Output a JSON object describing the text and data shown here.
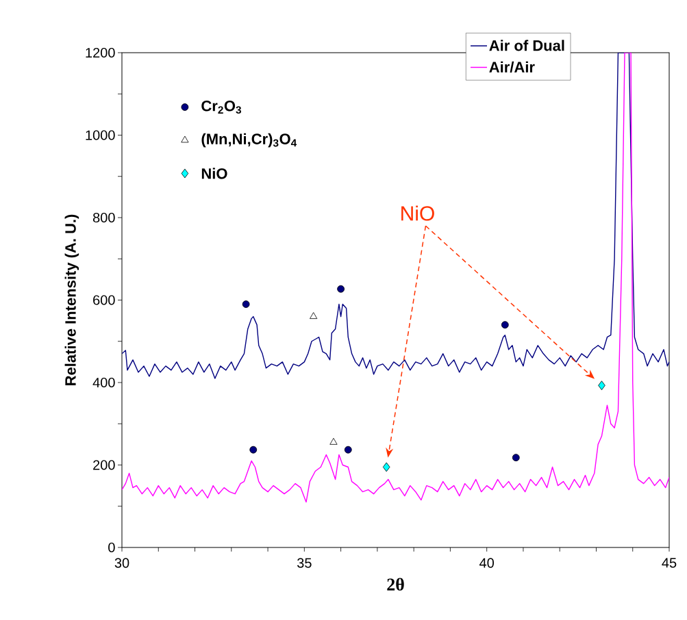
{
  "chart_data": {
    "type": "line",
    "xlabel": "2θ",
    "ylabel": "Relative Intensity (A. U.)",
    "xlim": [
      30,
      45
    ],
    "ylim": [
      0,
      1200
    ],
    "xticks": [
      30,
      {
        "value": 31,
        "label": null
      },
      {
        "value": 32,
        "label": null
      },
      {
        "value": 33,
        "label": null
      },
      {
        "value": 34,
        "label": null
      },
      35,
      {
        "value": 36,
        "label": null
      },
      {
        "value": 37,
        "label": null
      },
      {
        "value": 38,
        "label": null
      },
      {
        "value": 39,
        "label": null
      },
      40,
      {
        "value": 41,
        "label": null
      },
      {
        "value": 42,
        "label": null
      },
      {
        "value": 43,
        "label": null
      },
      {
        "value": 44,
        "label": null
      },
      45
    ],
    "yticks": [
      0,
      {
        "value": 100,
        "label": null
      },
      200,
      {
        "value": 300,
        "label": null
      },
      400,
      {
        "value": 500,
        "label": null
      },
      600,
      {
        "value": 700,
        "label": null
      },
      800,
      {
        "value": 900,
        "label": null
      },
      1000,
      {
        "value": 1100,
        "label": null
      },
      1200
    ],
    "grid": false,
    "legend": "top right",
    "annotations": [
      "NiO"
    ],
    "series": [
      {
        "name": "Air of Dual",
        "color": "#000080",
        "marker": "none",
        "line_style": "solid",
        "x": [
          30.0,
          30.1,
          30.15,
          30.3,
          30.45,
          30.6,
          30.75,
          30.9,
          31.05,
          31.2,
          31.35,
          31.5,
          31.65,
          31.8,
          31.95,
          32.1,
          32.25,
          32.4,
          32.55,
          32.7,
          32.85,
          33.0,
          33.1,
          33.25,
          33.35,
          33.45,
          33.55,
          33.6,
          33.7,
          33.75,
          33.85,
          33.95,
          34.1,
          34.25,
          34.4,
          34.55,
          34.7,
          34.85,
          35.0,
          35.1,
          35.2,
          35.3,
          35.4,
          35.5,
          35.6,
          35.7,
          35.75,
          35.85,
          35.95,
          36.0,
          36.05,
          36.15,
          36.2,
          36.3,
          36.4,
          36.5,
          36.6,
          36.7,
          36.8,
          36.9,
          37.0,
          37.15,
          37.3,
          37.45,
          37.6,
          37.75,
          37.9,
          38.05,
          38.2,
          38.35,
          38.5,
          38.65,
          38.8,
          38.95,
          39.1,
          39.25,
          39.4,
          39.55,
          39.7,
          39.85,
          40.0,
          40.15,
          40.3,
          40.45,
          40.5,
          40.6,
          40.7,
          40.8,
          40.9,
          41.0,
          41.1,
          41.25,
          41.4,
          41.55,
          41.7,
          41.85,
          42.0,
          42.15,
          42.3,
          42.45,
          42.6,
          42.75,
          42.9,
          43.05,
          43.2,
          43.3,
          43.4,
          43.5,
          43.6,
          43.9,
          44.0,
          44.05,
          44.15,
          44.3,
          44.4,
          44.55,
          44.7,
          44.85,
          44.95,
          45.0
        ],
        "values": [
          470,
          478,
          430,
          455,
          425,
          440,
          415,
          445,
          425,
          440,
          430,
          450,
          425,
          435,
          420,
          450,
          425,
          445,
          410,
          440,
          430,
          450,
          430,
          455,
          470,
          530,
          555,
          560,
          540,
          490,
          470,
          435,
          445,
          440,
          450,
          420,
          445,
          440,
          450,
          470,
          500,
          505,
          510,
          475,
          470,
          455,
          520,
          530,
          590,
          560,
          590,
          580,
          510,
          470,
          450,
          440,
          460,
          435,
          455,
          420,
          440,
          445,
          430,
          450,
          440,
          455,
          430,
          450,
          445,
          460,
          440,
          445,
          470,
          440,
          455,
          425,
          450,
          445,
          460,
          430,
          450,
          440,
          470,
          510,
          515,
          480,
          490,
          450,
          460,
          440,
          480,
          460,
          490,
          470,
          455,
          445,
          460,
          440,
          465,
          450,
          470,
          460,
          480,
          490,
          480,
          510,
          515,
          700,
          1200,
          1200,
          700,
          510,
          480,
          470,
          440,
          470,
          450,
          480,
          440,
          450
        ]
      },
      {
        "name": "Air/Air",
        "color": "#ff00ff",
        "marker": "none",
        "line_style": "solid",
        "x": [
          30.0,
          30.1,
          30.2,
          30.3,
          30.4,
          30.55,
          30.7,
          30.85,
          31.0,
          31.15,
          31.3,
          31.45,
          31.6,
          31.75,
          31.9,
          32.05,
          32.2,
          32.35,
          32.5,
          32.65,
          32.8,
          32.95,
          33.1,
          33.25,
          33.35,
          33.45,
          33.55,
          33.65,
          33.75,
          33.85,
          34.0,
          34.15,
          34.3,
          34.45,
          34.6,
          34.75,
          34.9,
          35.05,
          35.15,
          35.3,
          35.45,
          35.6,
          35.7,
          35.85,
          35.95,
          36.05,
          36.2,
          36.3,
          36.45,
          36.6,
          36.75,
          36.9,
          37.05,
          37.2,
          37.3,
          37.45,
          37.6,
          37.75,
          37.9,
          38.05,
          38.2,
          38.35,
          38.5,
          38.65,
          38.8,
          38.95,
          39.1,
          39.25,
          39.4,
          39.55,
          39.7,
          39.85,
          40.0,
          40.15,
          40.3,
          40.45,
          40.6,
          40.75,
          40.9,
          41.05,
          41.2,
          41.35,
          41.5,
          41.65,
          41.8,
          41.95,
          42.1,
          42.25,
          42.4,
          42.55,
          42.7,
          42.8,
          42.95,
          43.05,
          43.15,
          43.3,
          43.4,
          43.5,
          43.6,
          43.7,
          43.78,
          43.95,
          44.0,
          44.05,
          44.15,
          44.3,
          44.45,
          44.6,
          44.75,
          44.9,
          45.0
        ],
        "values": [
          140,
          155,
          180,
          145,
          150,
          130,
          145,
          125,
          150,
          130,
          145,
          120,
          150,
          130,
          145,
          125,
          140,
          120,
          150,
          130,
          145,
          135,
          130,
          155,
          160,
          185,
          210,
          195,
          160,
          145,
          135,
          150,
          140,
          130,
          140,
          155,
          145,
          110,
          160,
          185,
          195,
          225,
          205,
          165,
          225,
          200,
          195,
          160,
          150,
          135,
          140,
          130,
          145,
          155,
          165,
          140,
          145,
          125,
          150,
          135,
          115,
          150,
          145,
          135,
          160,
          140,
          150,
          125,
          155,
          140,
          165,
          135,
          150,
          140,
          165,
          145,
          160,
          140,
          155,
          135,
          165,
          150,
          170,
          145,
          195,
          150,
          160,
          140,
          165,
          145,
          175,
          150,
          180,
          250,
          270,
          345,
          300,
          290,
          330,
          700,
          1200,
          1200,
          400,
          200,
          165,
          155,
          170,
          150,
          165,
          145,
          170
        ]
      },
      {
        "name": "Cr$_{2}$O$_{3}$",
        "type": "scatter",
        "color": "#000080",
        "marker": "circle",
        "x": [
          33.4,
          36.0,
          40.5,
          33.6,
          36.2,
          40.8
        ],
        "values": [
          590,
          627,
          540,
          237,
          237,
          218
        ]
      },
      {
        "name": "(Mn,Ni,Cr)$_{3}$O$_{4}$",
        "type": "scatter",
        "color": "#ffffff",
        "marker": "triangle",
        "x": [
          35.25,
          35.8
        ],
        "values": [
          560,
          255
        ]
      },
      {
        "name": "NiO",
        "type": "scatter",
        "color": "#00ffff",
        "marker": "diamond",
        "x": [
          37.25,
          43.15
        ],
        "values": [
          195,
          393
        ]
      }
    ]
  }
}
